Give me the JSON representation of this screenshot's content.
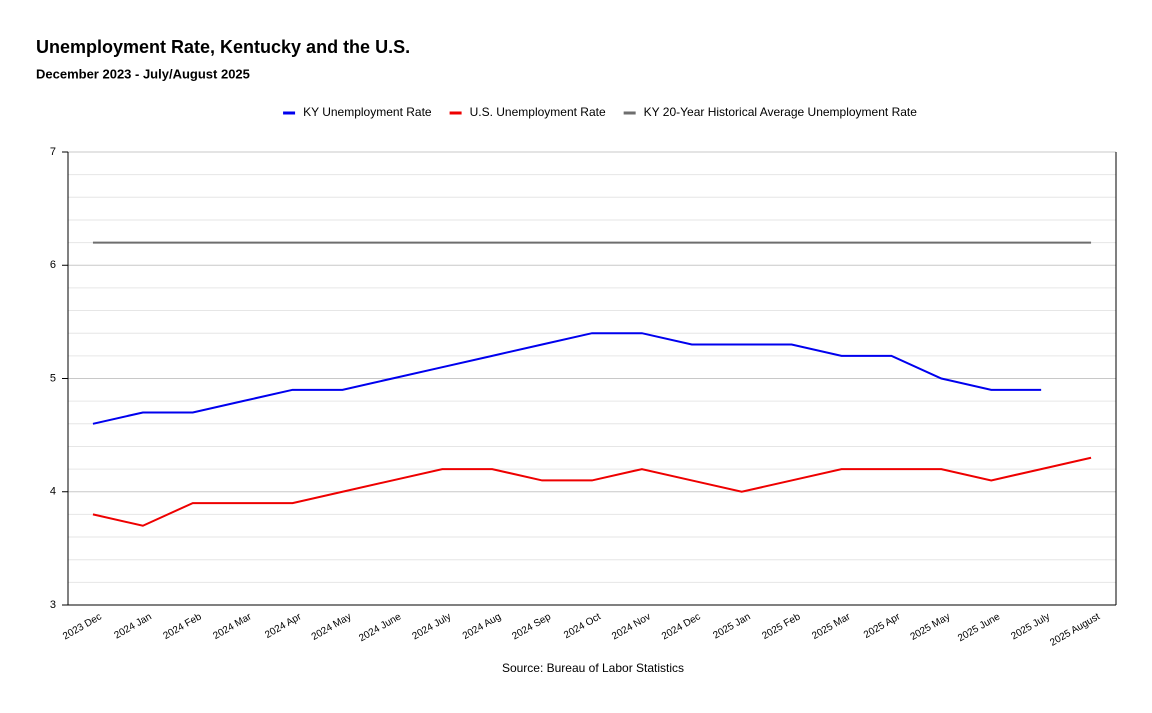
{
  "chart_data": {
    "type": "line",
    "title": "Unemployment Rate, Kentucky and the U.S.",
    "subtitle": "December 2023 - July/August 2025",
    "source": "Source: Bureau of Labor Statistics",
    "categories": [
      "2023 Dec",
      "2024 Jan",
      "2024 Feb",
      "2024 Mar",
      "2024 Apr",
      "2024 May",
      "2024 June",
      "2024 July",
      "2024 Aug",
      "2024 Sep",
      "2024 Oct",
      "2024 Nov",
      "2024 Dec",
      "2025 Jan",
      "2025 Feb",
      "2025 Mar",
      "2025 Apr",
      "2025 May",
      "2025 June",
      "2025 July",
      "2025 August"
    ],
    "series": [
      {
        "name": "KY Unemployment Rate",
        "color": "#0000ee",
        "values": [
          4.6,
          4.7,
          4.7,
          4.8,
          4.9,
          4.9,
          5.0,
          5.1,
          5.2,
          5.3,
          5.4,
          5.4,
          5.3,
          5.3,
          5.3,
          5.2,
          5.2,
          5.0,
          4.9,
          4.9,
          null
        ]
      },
      {
        "name": "U.S. Unemployment Rate",
        "color": "#ee0000",
        "values": [
          3.8,
          3.7,
          3.9,
          3.9,
          3.9,
          4.0,
          4.1,
          4.2,
          4.2,
          4.1,
          4.1,
          4.2,
          4.1,
          4.0,
          4.1,
          4.2,
          4.2,
          4.2,
          4.1,
          4.2,
          4.3
        ]
      },
      {
        "name": "KY 20-Year Historical Average Unemployment Rate",
        "color": "#6e6e6e",
        "values": [
          6.2,
          6.2,
          6.2,
          6.2,
          6.2,
          6.2,
          6.2,
          6.2,
          6.2,
          6.2,
          6.2,
          6.2,
          6.2,
          6.2,
          6.2,
          6.2,
          6.2,
          6.2,
          6.2,
          6.2,
          6.2
        ]
      }
    ],
    "ylim": [
      3,
      7
    ],
    "yticks": [
      3,
      4,
      5,
      6,
      7
    ],
    "minor_yticks": [
      3.2,
      3.4,
      3.6,
      3.8,
      4.2,
      4.4,
      4.6,
      4.8,
      5.2,
      5.4,
      5.6,
      5.8,
      6.2,
      6.4,
      6.6,
      6.8
    ],
    "grid": true,
    "legend": "top"
  }
}
